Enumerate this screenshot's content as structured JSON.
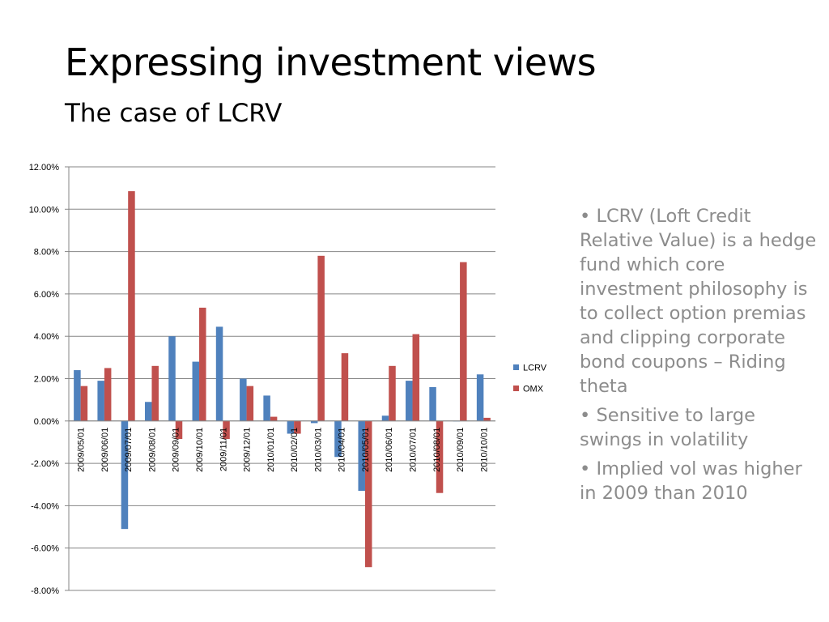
{
  "slide": {
    "title": "Expressing investment views",
    "subtitle": "The case of LCRV",
    "bullets": [
      "LCRV (Loft Credit Relative Value) is  a hedge fund which core investment philosophy is to collect option premias and clipping corporate bond coupons – Riding theta",
      "Sensitive to large swings in volatility",
      "Implied vol was higher in 2009 than 2010"
    ]
  },
  "chart_data": {
    "type": "bar",
    "categories": [
      "2009/05/01",
      "2009/06/01",
      "2009/07/01",
      "2009/08/01",
      "2009/09/01",
      "2009/10/01",
      "2009/11/01",
      "2009/12/01",
      "2010/01/01",
      "2010/02/01",
      "2010/03/01",
      "2010/04/01",
      "2010/05/01",
      "2010/06/01",
      "2010/07/01",
      "2010/08/01",
      "2010/09/01",
      "2010/10/01"
    ],
    "series": [
      {
        "name": "LCRV",
        "color": "#4f81bd",
        "values": [
          2.4,
          1.9,
          -5.1,
          0.9,
          4.0,
          2.8,
          4.45,
          2.0,
          1.2,
          -0.6,
          -0.1,
          -1.7,
          -3.3,
          0.25,
          1.9,
          1.6,
          0.0,
          2.2
        ]
      },
      {
        "name": "OMX",
        "color": "#c0504d",
        "values": [
          1.65,
          2.5,
          10.85,
          2.6,
          -0.85,
          5.35,
          -0.85,
          1.65,
          0.2,
          -0.6,
          7.8,
          3.2,
          -6.9,
          2.6,
          4.1,
          -3.4,
          7.5,
          0.15
        ]
      }
    ],
    "y_ticks": [
      "12.00%",
      "10.00%",
      "8.00%",
      "6.00%",
      "4.00%",
      "2.00%",
      "0.00%",
      "-2.00%",
      "-4.00%",
      "-6.00%",
      "-8.00%"
    ],
    "ylim": [
      -8,
      12
    ],
    "y_unit": "%",
    "grid": true,
    "legend_position": "right"
  }
}
